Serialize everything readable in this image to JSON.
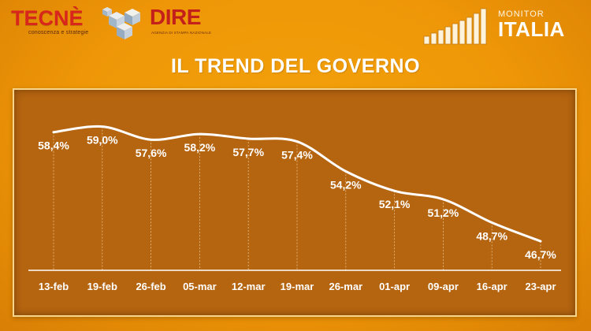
{
  "header": {
    "tecne_logo": "TECNÈ",
    "tecne_tagline": "conoscenza e strategie",
    "dire_logo": "DIRE",
    "dire_tagline": "AGENZIA DI STAMPA NAZIONALE",
    "monitor_label": "MONITOR",
    "italia_label": "ITALIA"
  },
  "colors": {
    "background": "#ee9607",
    "panel": "#b5640f",
    "panel_border": "#f7d58a",
    "line": "#ffffff",
    "text": "#ffffff",
    "logo_red": "#d8261c"
  },
  "chart_data": {
    "type": "line",
    "title": "IL TREND DEL GOVERNO",
    "xlabel": "",
    "ylabel": "",
    "categories": [
      "13-feb",
      "19-feb",
      "26-feb",
      "05-mar",
      "12-mar",
      "19-mar",
      "26-mar",
      "01-apr",
      "09-apr",
      "16-apr",
      "23-apr"
    ],
    "values": [
      58.4,
      59.0,
      57.6,
      58.2,
      57.7,
      57.4,
      54.2,
      52.1,
      51.2,
      48.7,
      46.7
    ],
    "data_labels": [
      "58,4%",
      "59,0%",
      "57,6%",
      "58,2%",
      "57,7%",
      "57,4%",
      "54,2%",
      "52,1%",
      "51,2%",
      "48,7%",
      "46,7%"
    ],
    "ylim": [
      44,
      61
    ],
    "grid": "vertical dashed",
    "legend": "none"
  }
}
